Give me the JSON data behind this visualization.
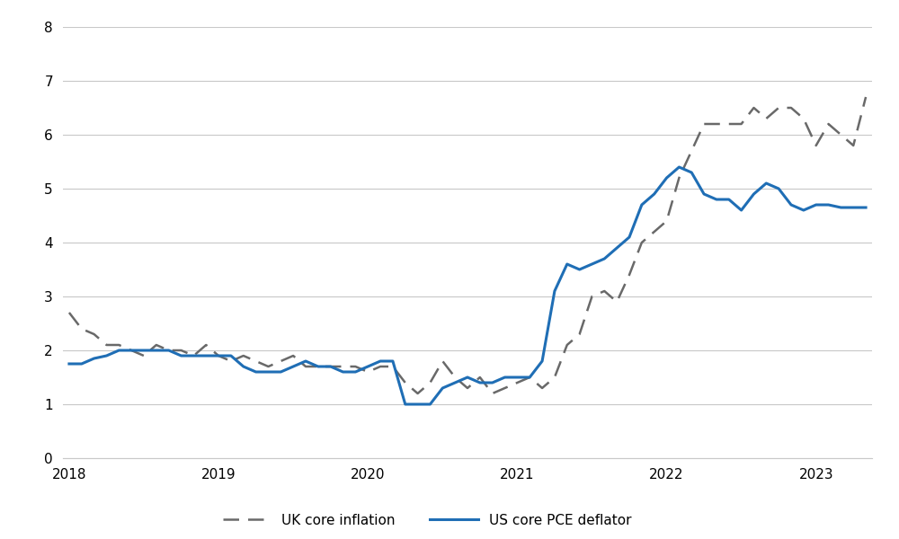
{
  "title": "",
  "background_color": "#ffffff",
  "ylim": [
    0,
    8
  ],
  "yticks": [
    0,
    1,
    2,
    3,
    4,
    5,
    6,
    7,
    8
  ],
  "grid_color": "#c8c8c8",
  "uk_color": "#696969",
  "us_color": "#1f6eb5",
  "uk_label": "UK core inflation",
  "us_label": "US core PCE deflator",
  "uk_data": {
    "values": [
      2.7,
      2.4,
      2.3,
      2.1,
      2.1,
      2.0,
      1.9,
      2.1,
      2.0,
      2.0,
      1.9,
      2.1,
      1.9,
      1.8,
      1.9,
      1.8,
      1.7,
      1.8,
      1.9,
      1.7,
      1.7,
      1.7,
      1.7,
      1.7,
      1.6,
      1.7,
      1.7,
      1.4,
      1.2,
      1.4,
      1.8,
      1.5,
      1.3,
      1.5,
      1.2,
      1.3,
      1.4,
      1.5,
      1.3,
      1.5,
      2.1,
      2.3,
      3.0,
      3.1,
      2.9,
      3.4,
      4.0,
      4.2,
      4.4,
      5.2,
      5.7,
      6.2,
      6.2,
      6.2,
      6.2,
      6.5,
      6.3,
      6.5,
      6.5,
      6.3,
      5.8,
      6.2,
      6.0,
      5.8,
      6.7
    ]
  },
  "us_data": {
    "values": [
      1.75,
      1.75,
      1.85,
      1.9,
      2.0,
      2.0,
      2.0,
      2.0,
      2.0,
      1.9,
      1.9,
      1.9,
      1.9,
      1.9,
      1.7,
      1.6,
      1.6,
      1.6,
      1.7,
      1.8,
      1.7,
      1.7,
      1.6,
      1.6,
      1.7,
      1.8,
      1.8,
      1.0,
      1.0,
      1.0,
      1.3,
      1.4,
      1.5,
      1.4,
      1.4,
      1.5,
      1.5,
      1.5,
      1.8,
      3.1,
      3.6,
      3.5,
      3.6,
      3.7,
      3.9,
      4.1,
      4.7,
      4.9,
      5.2,
      5.4,
      5.3,
      4.9,
      4.8,
      4.8,
      4.6,
      4.9,
      5.1,
      5.0,
      4.7,
      4.6,
      4.7,
      4.7,
      4.65,
      4.65,
      4.65
    ]
  },
  "xtick_labels": [
    "2018",
    "2019",
    "2020",
    "2021",
    "2022",
    "2023"
  ],
  "xtick_positions": [
    0,
    12,
    24,
    36,
    48,
    60
  ],
  "tick_fontsize": 11,
  "legend_fontsize": 11
}
